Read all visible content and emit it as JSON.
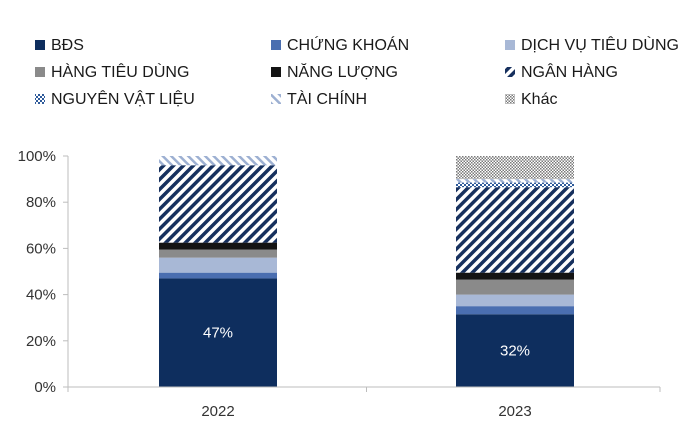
{
  "chart_data": {
    "type": "bar",
    "stacked": true,
    "categories": [
      "2022",
      "2023"
    ],
    "ylim": [
      0,
      100
    ],
    "yticks": [
      "0%",
      "20%",
      "40%",
      "60%",
      "80%",
      "100%"
    ],
    "series": [
      {
        "name": "BĐS",
        "key": "bds",
        "color": "#0e2e5e",
        "values": [
          47,
          31.5
        ]
      },
      {
        "name": "CHỨNG KHOÁN",
        "key": "chung-khoan",
        "color": "#4a6eb0",
        "values": [
          2.5,
          3.5
        ]
      },
      {
        "name": "DỊCH VỤ TIÊU DÙNG",
        "key": "dich-vu-tieu-dung",
        "color": "#a8b8d6",
        "values": [
          6.5,
          5
        ]
      },
      {
        "name": "HÀNG TIÊU DÙNG",
        "key": "hang-tieu-dung",
        "color": "#8a8a8a",
        "values": [
          3.5,
          6.5
        ]
      },
      {
        "name": "NĂNG LƯỢNG",
        "key": "nang-luong",
        "color": "#141414",
        "values": [
          3,
          3
        ]
      },
      {
        "name": "NGÂN HÀNG",
        "key": "ngan-hang",
        "color": "#16305e",
        "values": [
          33.5,
          37
        ]
      },
      {
        "name": "NGUYÊN VẬT LIỆU",
        "key": "nguyen-vat-lieu",
        "color": "#2e5a9a",
        "values": [
          0,
          2
        ]
      },
      {
        "name": "TÀI CHÍNH",
        "key": "tai-chinh",
        "color": "#9db0d2",
        "values": [
          4,
          1.5
        ]
      },
      {
        "name": "Khác",
        "key": "khac",
        "color": "#7a7a7a",
        "values": [
          0,
          10
        ]
      }
    ],
    "data_labels": [
      {
        "category": "2022",
        "text": "47%"
      },
      {
        "category": "2023",
        "text": "32%"
      }
    ]
  }
}
